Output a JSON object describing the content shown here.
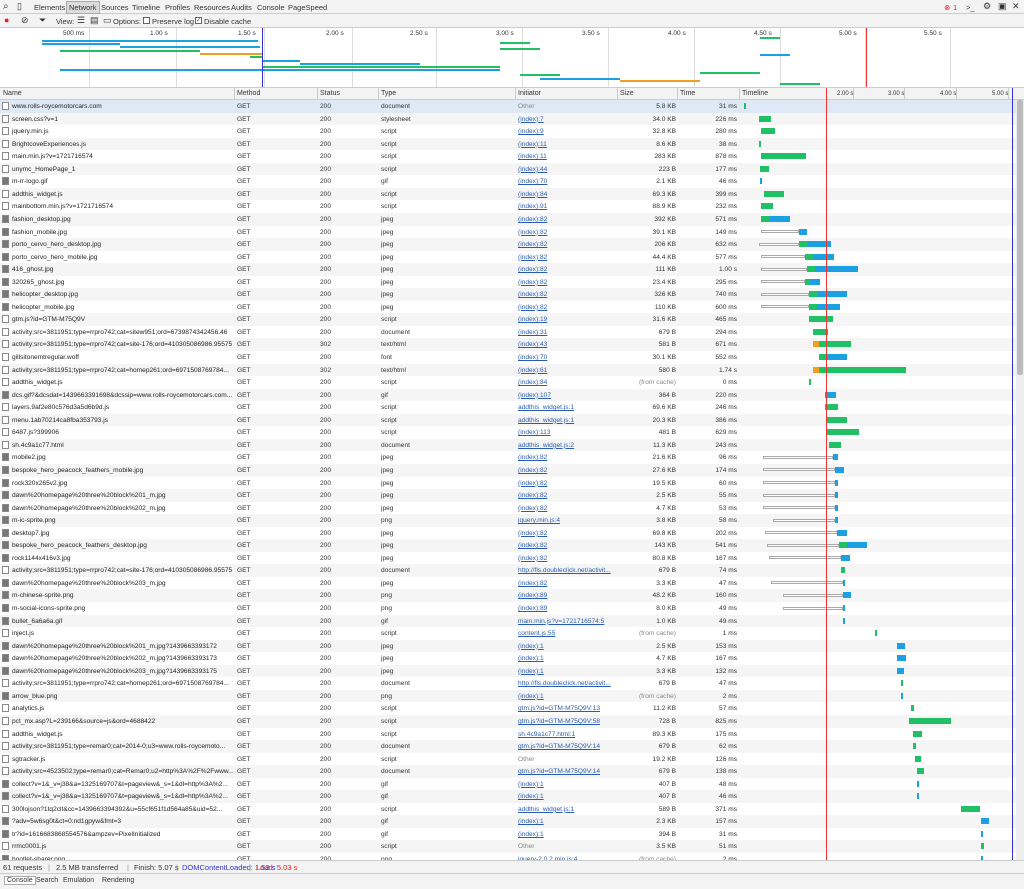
{
  "devtools": {
    "tabs": [
      "Elements",
      "Network",
      "Sources",
      "Timeline",
      "Profiles",
      "Resources",
      "Audits",
      "Console",
      "PageSpeed"
    ],
    "active_tab": "Network",
    "error_count": "1",
    "toolbar": {
      "view_label": "View:",
      "options_label": "Options:",
      "preserve_log": "Preserve log",
      "disable_cache": "Disable cache"
    },
    "overview_ticks": [
      "500 ms",
      "1.00 s",
      "1.50 s",
      "2.00 s",
      "2.50 s",
      "3.00 s",
      "3.50 s",
      "4.00 s",
      "4.50 s",
      "5.00 s",
      "5.50 s"
    ],
    "columns": {
      "name": "Name",
      "method": "Method",
      "status": "Status",
      "type": "Type",
      "initiator": "Initiator",
      "size": "Size",
      "time": "Time",
      "timeline": "Timeline"
    },
    "timeline_ticks": [
      "2.00 s",
      "3.00 s",
      "4.00 s",
      "5.00 s"
    ],
    "status": {
      "requests": "61 requests",
      "transferred": "2.5 MB transferred",
      "finish": "Finish: 5.07 s",
      "dcl": "DOMContentLoaded: 1.53 s",
      "load": "Load: 5.03 s"
    },
    "drawer_tabs": [
      "Console",
      "Search",
      "Emulation",
      "Rendering"
    ]
  },
  "colors": {
    "blue": "#1ba1e2",
    "green": "#21c065",
    "orange": "#f0a020",
    "red": "#e33",
    "dcl_blue": "#33c"
  },
  "rows": [
    {
      "name": "www.rolls-roycemotorcars.com",
      "method": "GET",
      "status": "200",
      "type": "document",
      "initiator": "Other",
      "size": "5.8 KB",
      "time": "31 ms"
    },
    {
      "name": "screen.css?v=1",
      "method": "GET",
      "status": "200",
      "type": "stylesheet",
      "initiator": "(index):7",
      "size": "34.0 KB",
      "time": "226 ms"
    },
    {
      "name": "jquery.min.js",
      "method": "GET",
      "status": "200",
      "type": "script",
      "initiator": "(index):9",
      "size": "32.8 KB",
      "time": "280 ms"
    },
    {
      "name": "BrightcoveExperiences.js",
      "method": "GET",
      "status": "200",
      "type": "script",
      "initiator": "(index):11",
      "size": "8.6 KB",
      "time": "38 ms"
    },
    {
      "name": "main.min.js?v=1721716574",
      "method": "GET",
      "status": "200",
      "type": "script",
      "initiator": "(index):11",
      "size": "283 KB",
      "time": "878 ms"
    },
    {
      "name": "unymc_HomePage_1",
      "method": "GET",
      "status": "200",
      "type": "script",
      "initiator": "(index):44",
      "size": "223 B",
      "time": "177 ms"
    },
    {
      "name": "m-rr-logo.gif",
      "method": "GET",
      "status": "200",
      "type": "gif",
      "initiator": "(index):70",
      "size": "2.1 KB",
      "time": "46 ms"
    },
    {
      "name": "addthis_widget.js",
      "method": "GET",
      "status": "200",
      "type": "script",
      "initiator": "(index):84",
      "size": "69.3 KB",
      "time": "399 ms"
    },
    {
      "name": "mainbottom.min.js?v=1721716574",
      "method": "GET",
      "status": "200",
      "type": "script",
      "initiator": "(index):91",
      "size": "88.9 KB",
      "time": "232 ms"
    },
    {
      "name": "fashion_desktop.jpg",
      "method": "GET",
      "status": "200",
      "type": "jpeg",
      "initiator": "(index):82",
      "size": "392 KB",
      "time": "571 ms"
    },
    {
      "name": "fashion_mobile.jpg",
      "method": "GET",
      "status": "200",
      "type": "jpeg",
      "initiator": "(index):82",
      "size": "39.1 KB",
      "time": "149 ms"
    },
    {
      "name": "porto_cervo_hero_desktop.jpg",
      "method": "GET",
      "status": "200",
      "type": "jpeg",
      "initiator": "(index):82",
      "size": "206 KB",
      "time": "632 ms"
    },
    {
      "name": "porto_cervo_hero_mobile.jpg",
      "method": "GET",
      "status": "200",
      "type": "jpeg",
      "initiator": "(index):82",
      "size": "44.4 KB",
      "time": "577 ms"
    },
    {
      "name": "416_ghost.jpg",
      "method": "GET",
      "status": "200",
      "type": "jpeg",
      "initiator": "(index):82",
      "size": "111 KB",
      "time": "1.00 s"
    },
    {
      "name": "320265_ghost.jpg",
      "method": "GET",
      "status": "200",
      "type": "jpeg",
      "initiator": "(index):82",
      "size": "23.4 KB",
      "time": "295 ms"
    },
    {
      "name": "helicopter_desktop.jpg",
      "method": "GET",
      "status": "200",
      "type": "jpeg",
      "initiator": "(index):82",
      "size": "326 KB",
      "time": "740 ms"
    },
    {
      "name": "helicopter_mobile.jpg",
      "method": "GET",
      "status": "200",
      "type": "jpeg",
      "initiator": "(index):82",
      "size": "110 KB",
      "time": "600 ms"
    },
    {
      "name": "gtm.js?id=GTM-M75Q9V",
      "method": "GET",
      "status": "200",
      "type": "script",
      "initiator": "(index):19",
      "size": "31.6 KB",
      "time": "465 ms"
    },
    {
      "name": "activity;src=3811951;type=rrpro742;cat=sitew951;ord=6739874342456.46",
      "method": "GET",
      "status": "200",
      "type": "document",
      "initiator": "(index):31",
      "size": "679 B",
      "time": "294 ms"
    },
    {
      "name": "activity;src=3811951;type=rrpro742;cat=site-176;ord=410305086986.95575",
      "method": "GET",
      "status": "302",
      "type": "text/html",
      "initiator": "(index):43",
      "size": "581 B",
      "time": "671 ms"
    },
    {
      "name": "gillsitonemtregular.woff",
      "method": "GET",
      "status": "200",
      "type": "font",
      "initiator": "(index):70",
      "size": "30.1 KB",
      "time": "552 ms"
    },
    {
      "name": "activity;src=3811951;type=rrpro742;cat=homep261;ord=6971508769784...",
      "method": "GET",
      "status": "302",
      "type": "text/html",
      "initiator": "(index):61",
      "size": "580 B",
      "time": "1.74 s"
    },
    {
      "name": "addthis_widget.js",
      "method": "GET",
      "status": "200",
      "type": "script",
      "initiator": "(index):84",
      "size": "(from cache)",
      "time": "0 ms"
    },
    {
      "name": "dcs.gif?&dcsdat=1439663391698&dcssip=www.rolls-roycemotorcars.com...",
      "method": "GET",
      "status": "200",
      "type": "gif",
      "initiator": "(index):107",
      "size": "364 B",
      "time": "220 ms"
    },
    {
      "name": "layers.9af2e80c576d3a5d6b9d.js",
      "method": "GET",
      "status": "200",
      "type": "script",
      "initiator": "addthis_widget.js:1",
      "size": "69.6 KB",
      "time": "246 ms"
    },
    {
      "name": "menu.1ab70214ca8fba353793.js",
      "method": "GET",
      "status": "200",
      "type": "script",
      "initiator": "addthis_widget.js:1",
      "size": "20.3 KB",
      "time": "386 ms"
    },
    {
      "name": "6487.js?399906",
      "method": "GET",
      "status": "200",
      "type": "script",
      "initiator": "(index):113",
      "size": "481 B",
      "time": "629 ms"
    },
    {
      "name": "sh.4c9a1c77.html",
      "method": "GET",
      "status": "200",
      "type": "document",
      "initiator": "addthis_widget.js:2",
      "size": "11.3 KB",
      "time": "243 ms"
    },
    {
      "name": "mobile2.jpg",
      "method": "GET",
      "status": "200",
      "type": "jpeg",
      "initiator": "(index):82",
      "size": "21.6 KB",
      "time": "96 ms"
    },
    {
      "name": "bespoke_hero_peacock_feathers_mobile.jpg",
      "method": "GET",
      "status": "200",
      "type": "jpeg",
      "initiator": "(index):82",
      "size": "27.6 KB",
      "time": "174 ms"
    },
    {
      "name": "rock320x265v2.jpg",
      "method": "GET",
      "status": "200",
      "type": "jpeg",
      "initiator": "(index):82",
      "size": "19.5 KB",
      "time": "60 ms"
    },
    {
      "name": "dawn%20homepage%20three%20block%201_m.jpg",
      "method": "GET",
      "status": "200",
      "type": "jpeg",
      "initiator": "(index):82",
      "size": "2.5 KB",
      "time": "55 ms"
    },
    {
      "name": "dawn%20homepage%20three%20block%202_m.jpg",
      "method": "GET",
      "status": "200",
      "type": "jpeg",
      "initiator": "(index):82",
      "size": "4.7 KB",
      "time": "53 ms"
    },
    {
      "name": "m-ic-sprite.png",
      "method": "GET",
      "status": "200",
      "type": "png",
      "initiator": "jquery.min.js:4",
      "size": "3.8 KB",
      "time": "58 ms"
    },
    {
      "name": "desktop7.jpg",
      "method": "GET",
      "status": "200",
      "type": "jpeg",
      "initiator": "(index):82",
      "size": "69.8 KB",
      "time": "202 ms"
    },
    {
      "name": "bespoke_hero_peacock_feathers_desktop.jpg",
      "method": "GET",
      "status": "200",
      "type": "jpeg",
      "initiator": "(index):82",
      "size": "143 KB",
      "time": "541 ms"
    },
    {
      "name": "rock1144x416v3.jpg",
      "method": "GET",
      "status": "200",
      "type": "jpeg",
      "initiator": "(index):82",
      "size": "80.8 KB",
      "time": "167 ms"
    },
    {
      "name": "activity;src=3811951;type=rrpro742;cat=site-176;ord=410305086986.95575",
      "method": "GET",
      "status": "200",
      "type": "document",
      "initiator": "http://fls.doubleclick.net/activit...",
      "size": "679 B",
      "time": "74 ms"
    },
    {
      "name": "dawn%20homepage%20three%20block%203_m.jpg",
      "method": "GET",
      "status": "200",
      "type": "jpeg",
      "initiator": "(index):82",
      "size": "3.3 KB",
      "time": "47 ms"
    },
    {
      "name": "m-chinese-sprite.png",
      "method": "GET",
      "status": "200",
      "type": "png",
      "initiator": "(index):89",
      "size": "48.2 KB",
      "time": "160 ms"
    },
    {
      "name": "m-social-icons-sprite.png",
      "method": "GET",
      "status": "200",
      "type": "png",
      "initiator": "(index):89",
      "size": "8.0 KB",
      "time": "49 ms"
    },
    {
      "name": "bullet_6a6a6a.gif",
      "method": "GET",
      "status": "200",
      "type": "gif",
      "initiator": "main.min.js?v=1721716574:5",
      "size": "1.0 KB",
      "time": "49 ms"
    },
    {
      "name": "inject.js",
      "method": "GET",
      "status": "200",
      "type": "script",
      "initiator": "content.js:55",
      "size": "(from cache)",
      "time": "1 ms"
    },
    {
      "name": "dawn%20homepage%20three%20block%201_m.jpg?1439663393172",
      "method": "GET",
      "status": "200",
      "type": "jpeg",
      "initiator": "(index):1",
      "size": "2.5 KB",
      "time": "153 ms"
    },
    {
      "name": "dawn%20homepage%20three%20block%202_m.jpg?1439663393173",
      "method": "GET",
      "status": "200",
      "type": "jpeg",
      "initiator": "(index):1",
      "size": "4.7 KB",
      "time": "167 ms"
    },
    {
      "name": "dawn%20homepage%20three%20block%203_m.jpg?1439663393175",
      "method": "GET",
      "status": "200",
      "type": "jpeg",
      "initiator": "(index):1",
      "size": "3.3 KB",
      "time": "132 ms"
    },
    {
      "name": "activity;src=3811951;type=rrpro742;cat=homep261;ord=6971508769784...",
      "method": "GET",
      "status": "200",
      "type": "document",
      "initiator": "http://fls.doubleclick.net/activit...",
      "size": "679 B",
      "time": "47 ms"
    },
    {
      "name": "arrow_blue.png",
      "method": "GET",
      "status": "200",
      "type": "png",
      "initiator": "(index):1",
      "size": "(from cache)",
      "time": "2 ms"
    },
    {
      "name": "analytics.js",
      "method": "GET",
      "status": "200",
      "type": "script",
      "initiator": "gtm.js?id=GTM-M75Q9V:13",
      "size": "11.2 KB",
      "time": "57 ms"
    },
    {
      "name": "pct_mx.asp?L=239166&source=js&ord=4688422",
      "method": "GET",
      "status": "200",
      "type": "script",
      "initiator": "gtm.js?id=GTM-M75Q9V:58",
      "size": "728 B",
      "time": "825 ms"
    },
    {
      "name": "addthis_widget.js",
      "method": "GET",
      "status": "200",
      "type": "script",
      "initiator": "sh.4c9a1c77.html:1",
      "size": "89.3 KB",
      "time": "175 ms"
    },
    {
      "name": "activity;src=3811951;type=remar0;cat=2014-0;u3=www.rolls-roycemoto...",
      "method": "GET",
      "status": "200",
      "type": "document",
      "initiator": "gtm.js?id=GTM-M75Q9V:14",
      "size": "679 B",
      "time": "62 ms"
    },
    {
      "name": "sgtracker.js",
      "method": "GET",
      "status": "200",
      "type": "script",
      "initiator": "Other",
      "size": "19.2 KB",
      "time": "126 ms"
    },
    {
      "name": "activity;src=4523502;type=remar0;cat=Remar0;u2=http%3A%2F%2Fwww...",
      "method": "GET",
      "status": "200",
      "type": "document",
      "initiator": "gtm.js?id=GTM-M75Q9V:14",
      "size": "679 B",
      "time": "138 ms"
    },
    {
      "name": "collect?v=1&_v=j38&a=1325169707&t=pageview&_s=1&dl=http%3A%2...",
      "method": "GET",
      "status": "200",
      "type": "gif",
      "initiator": "(index):1",
      "size": "407 B",
      "time": "48 ms"
    },
    {
      "name": "collect?v=1&_v=j38&a=1325169707&t=pageview&_s=1&dl=http%3A%2...",
      "method": "GET",
      "status": "200",
      "type": "gif",
      "initiator": "(index):1",
      "size": "407 B",
      "time": "46 ms"
    },
    {
      "name": "300lojson?1tq2clt&cc=1439663394392&u=55cf651f1d564a85&uid=52...",
      "method": "GET",
      "status": "200",
      "type": "script",
      "initiator": "addthis_widget.js:1",
      "size": "589 B",
      "time": "371 ms"
    },
    {
      "name": "?adv=5w6sg0t&ct=0:nd1gpyw&fmt=3",
      "method": "GET",
      "status": "200",
      "type": "gif",
      "initiator": "(index):1",
      "size": "2.3 KB",
      "time": "157 ms"
    },
    {
      "name": "tr?id=1616683868554576&ampzev=PixelInitialized",
      "method": "GET",
      "status": "200",
      "type": "gif",
      "initiator": "(index):1",
      "size": "394 B",
      "time": "31 ms"
    },
    {
      "name": "rrmc0001.js",
      "method": "GET",
      "status": "200",
      "type": "script",
      "initiator": "Other",
      "size": "3.5 KB",
      "time": "51 ms"
    },
    {
      "name": "hootlet-sharer.png",
      "method": "GET",
      "status": "200",
      "type": "png",
      "initiator": "jquery-2.0.2.min.js:4",
      "size": "(from cache)",
      "time": "2 ms"
    }
  ]
}
